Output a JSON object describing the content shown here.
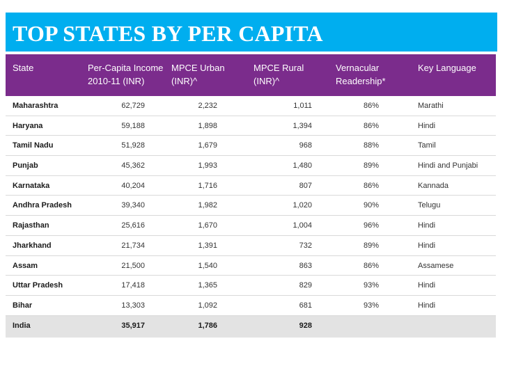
{
  "title": "TOP STATES BY PER CAPITA",
  "colors": {
    "title_bg": "#00aeef",
    "header_bg": "#7b2c8c",
    "total_bg": "#e3e3e3"
  },
  "table": {
    "headers": [
      [
        "State"
      ],
      [
        "Per-Capita Income",
        "2010-11 (INR)"
      ],
      [
        "MPCE Urban",
        "(INR)^"
      ],
      [
        "MPCE Rural",
        "(INR)^"
      ],
      [
        "Vernacular",
        "Readership*"
      ],
      [
        "Key Language"
      ]
    ],
    "rows": [
      {
        "state": "Maharashtra",
        "income": "62,729",
        "urban": "2,232",
        "rural": "1,011",
        "vernacular": "86%",
        "language": "Marathi"
      },
      {
        "state": "Haryana",
        "income": "59,188",
        "urban": "1,898",
        "rural": "1,394",
        "vernacular": "86%",
        "language": "Hindi"
      },
      {
        "state": "Tamil Nadu",
        "income": "51,928",
        "urban": "1,679",
        "rural": "968",
        "vernacular": "88%",
        "language": "Tamil"
      },
      {
        "state": "Punjab",
        "income": "45,362",
        "urban": "1,993",
        "rural": "1,480",
        "vernacular": "89%",
        "language": "Hindi and Punjabi"
      },
      {
        "state": "Karnataka",
        "income": "40,204",
        "urban": "1,716",
        "rural": "807",
        "vernacular": "86%",
        "language": "Kannada"
      },
      {
        "state": "Andhra Pradesh",
        "income": "39,340",
        "urban": "1,982",
        "rural": "1,020",
        "vernacular": "90%",
        "language": "Telugu"
      },
      {
        "state": "Rajasthan",
        "income": "25,616",
        "urban": "1,670",
        "rural": "1,004",
        "vernacular": "96%",
        "language": "Hindi"
      },
      {
        "state": "Jharkhand",
        "income": "21,734",
        "urban": "1,391",
        "rural": "732",
        "vernacular": "89%",
        "language": "Hindi"
      },
      {
        "state": "Assam",
        "income": "21,500",
        "urban": "1,540",
        "rural": "863",
        "vernacular": "86%",
        "language": "Assamese"
      },
      {
        "state": "Uttar Pradesh",
        "income": "17,418",
        "urban": "1,365",
        "rural": "829",
        "vernacular": "93%",
        "language": "Hindi"
      },
      {
        "state": "Bihar",
        "income": "13,303",
        "urban": "1,092",
        "rural": "681",
        "vernacular": "93%",
        "language": "Hindi"
      }
    ],
    "total": {
      "state": "India",
      "income": "35,917",
      "urban": "1,786",
      "rural": "928",
      "vernacular": "",
      "language": ""
    }
  }
}
